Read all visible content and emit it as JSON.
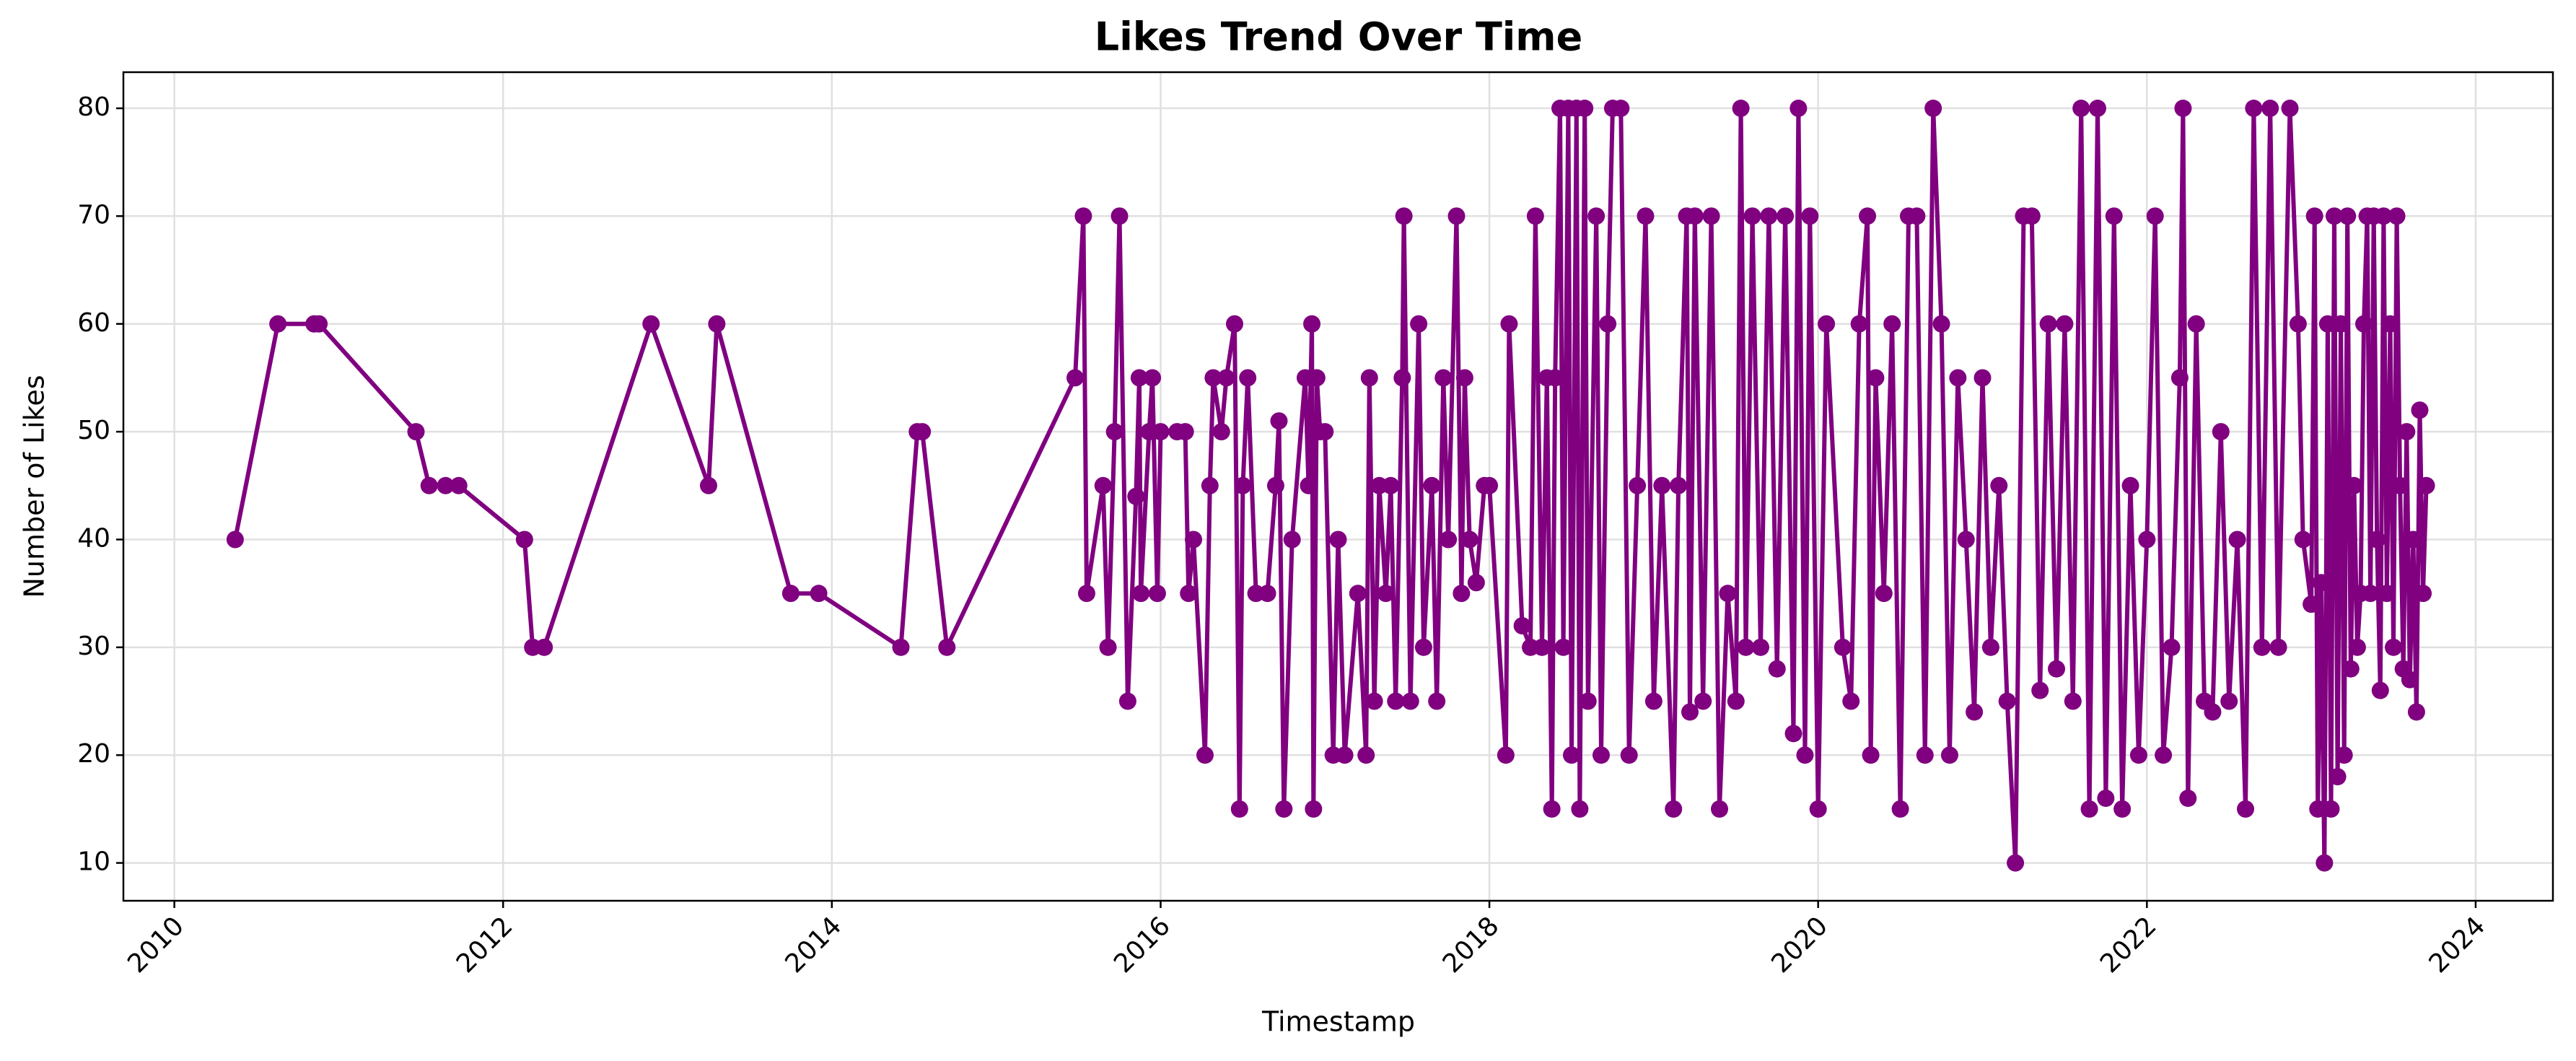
{
  "chart_data": {
    "type": "line",
    "title": "Likes Trend Over Time",
    "xlabel": "Timestamp",
    "ylabel": "Number of Likes",
    "color": "#800080",
    "grid": true,
    "xlim": [
      2009.69,
      2024.47
    ],
    "xticks": [
      2010,
      2012,
      2014,
      2016,
      2018,
      2020,
      2022,
      2024
    ],
    "ylim": [
      6.49,
      83.35
    ],
    "yticks": [
      10,
      20,
      30,
      40,
      50,
      60,
      70,
      80
    ],
    "x": [
      2010.37,
      2010.63,
      2010.85,
      2010.88,
      2011.47,
      2011.55,
      2011.65,
      2011.73,
      2012.13,
      2012.18,
      2012.25,
      2012.9,
      2013.25,
      2013.3,
      2013.75,
      2013.92,
      2014.42,
      2014.52,
      2014.55,
      2014.7,
      2015.48,
      2015.53,
      2015.55,
      2015.65,
      2015.68,
      2015.72,
      2015.75,
      2015.8,
      2015.85,
      2015.87,
      2015.88,
      2015.93,
      2015.95,
      2015.98,
      2016.0,
      2016.1,
      2016.15,
      2016.17,
      2016.2,
      2016.27,
      2016.3,
      2016.32,
      2016.37,
      2016.4,
      2016.45,
      2016.48,
      2016.5,
      2016.53,
      2016.58,
      2016.65,
      2016.7,
      2016.72,
      2016.75,
      2016.8,
      2016.88,
      2016.9,
      2016.92,
      2016.93,
      2016.95,
      2016.97,
      2017.0,
      2017.05,
      2017.08,
      2017.12,
      2017.2,
      2017.25,
      2017.27,
      2017.3,
      2017.33,
      2017.37,
      2017.4,
      2017.43,
      2017.47,
      2017.48,
      2017.52,
      2017.57,
      2017.6,
      2017.65,
      2017.68,
      2017.72,
      2017.75,
      2017.8,
      2017.83,
      2017.85,
      2017.88,
      2017.92,
      2017.97,
      2018.0,
      2018.1,
      2018.12,
      2018.2,
      2018.25,
      2018.28,
      2018.32,
      2018.35,
      2018.38,
      2018.4,
      2018.43,
      2018.45,
      2018.48,
      2018.5,
      2018.53,
      2018.55,
      2018.58,
      2018.6,
      2018.65,
      2018.68,
      2018.72,
      2018.75,
      2018.8,
      2018.85,
      2018.9,
      2018.95,
      2019.0,
      2019.05,
      2019.12,
      2019.15,
      2019.2,
      2019.22,
      2019.25,
      2019.3,
      2019.35,
      2019.4,
      2019.45,
      2019.5,
      2019.53,
      2019.56,
      2019.6,
      2019.65,
      2019.7,
      2019.75,
      2019.8,
      2019.85,
      2019.88,
      2019.92,
      2019.95,
      2020.0,
      2020.05,
      2020.15,
      2020.2,
      2020.25,
      2020.3,
      2020.32,
      2020.35,
      2020.4,
      2020.45,
      2020.5,
      2020.55,
      2020.6,
      2020.65,
      2020.7,
      2020.75,
      2020.8,
      2020.85,
      2020.9,
      2020.95,
      2021.0,
      2021.05,
      2021.1,
      2021.15,
      2021.2,
      2021.25,
      2021.3,
      2021.35,
      2021.4,
      2021.45,
      2021.5,
      2021.55,
      2021.6,
      2021.65,
      2021.7,
      2021.75,
      2021.8,
      2021.85,
      2021.9,
      2021.95,
      2022.0,
      2022.05,
      2022.1,
      2022.15,
      2022.2,
      2022.22,
      2022.25,
      2022.3,
      2022.35,
      2022.4,
      2022.45,
      2022.5,
      2022.55,
      2022.6,
      2022.65,
      2022.7,
      2022.75,
      2022.8,
      2022.87,
      2022.92,
      2022.95,
      2023.0,
      2023.02,
      2023.04,
      2023.06,
      2023.08,
      2023.1,
      2023.12,
      2023.14,
      2023.16,
      2023.18,
      2023.2,
      2023.22,
      2023.24,
      2023.26,
      2023.28,
      2023.3,
      2023.32,
      2023.34,
      2023.36,
      2023.38,
      2023.4,
      2023.42,
      2023.44,
      2023.46,
      2023.48,
      2023.5,
      2023.52,
      2023.54,
      2023.56,
      2023.58,
      2023.6,
      2023.62,
      2023.64,
      2023.66,
      2023.68,
      2023.7
    ],
    "values": [
      40,
      60,
      60,
      60,
      50,
      45,
      45,
      45,
      40,
      30,
      30,
      60,
      45,
      60,
      35,
      35,
      30,
      50,
      50,
      30,
      55,
      70,
      35,
      45,
      30,
      50,
      70,
      25,
      44,
      55,
      35,
      50,
      55,
      35,
      50,
      50,
      50,
      35,
      40,
      20,
      45,
      55,
      50,
      55,
      60,
      15,
      45,
      55,
      35,
      35,
      45,
      51,
      15,
      40,
      55,
      45,
      60,
      15,
      55,
      50,
      50,
      20,
      40,
      20,
      35,
      20,
      55,
      25,
      45,
      35,
      45,
      25,
      55,
      70,
      25,
      60,
      30,
      45,
      25,
      55,
      40,
      70,
      35,
      55,
      40,
      36,
      45,
      45,
      20,
      60,
      32,
      30,
      70,
      30,
      55,
      15,
      55,
      80,
      30,
      80,
      20,
      80,
      15,
      80,
      25,
      70,
      20,
      60,
      80,
      80,
      20,
      45,
      70,
      25,
      45,
      15,
      45,
      70,
      24,
      70,
      25,
      70,
      15,
      35,
      25,
      80,
      30,
      70,
      30,
      70,
      28,
      70,
      22,
      80,
      20,
      70,
      15,
      60,
      30,
      25,
      60,
      70,
      20,
      55,
      35,
      60,
      15,
      70,
      70,
      20,
      80,
      60,
      20,
      55,
      40,
      24,
      55,
      30,
      45,
      25,
      10,
      70,
      70,
      26,
      60,
      28,
      60,
      25,
      80,
      15,
      80,
      16,
      70,
      15,
      45,
      20,
      40,
      70,
      20,
      30,
      55,
      80,
      16,
      60,
      25,
      24,
      50,
      25,
      40,
      15,
      80,
      30,
      80,
      30,
      80,
      60,
      40,
      34,
      70,
      15,
      36,
      10,
      60,
      15,
      70,
      18,
      60,
      20,
      70,
      28,
      45,
      30,
      35,
      60,
      70,
      35,
      70,
      40,
      26,
      70,
      35,
      60,
      30,
      70,
      45,
      28,
      50,
      27,
      40,
      24,
      52,
      35,
      45
    ]
  }
}
